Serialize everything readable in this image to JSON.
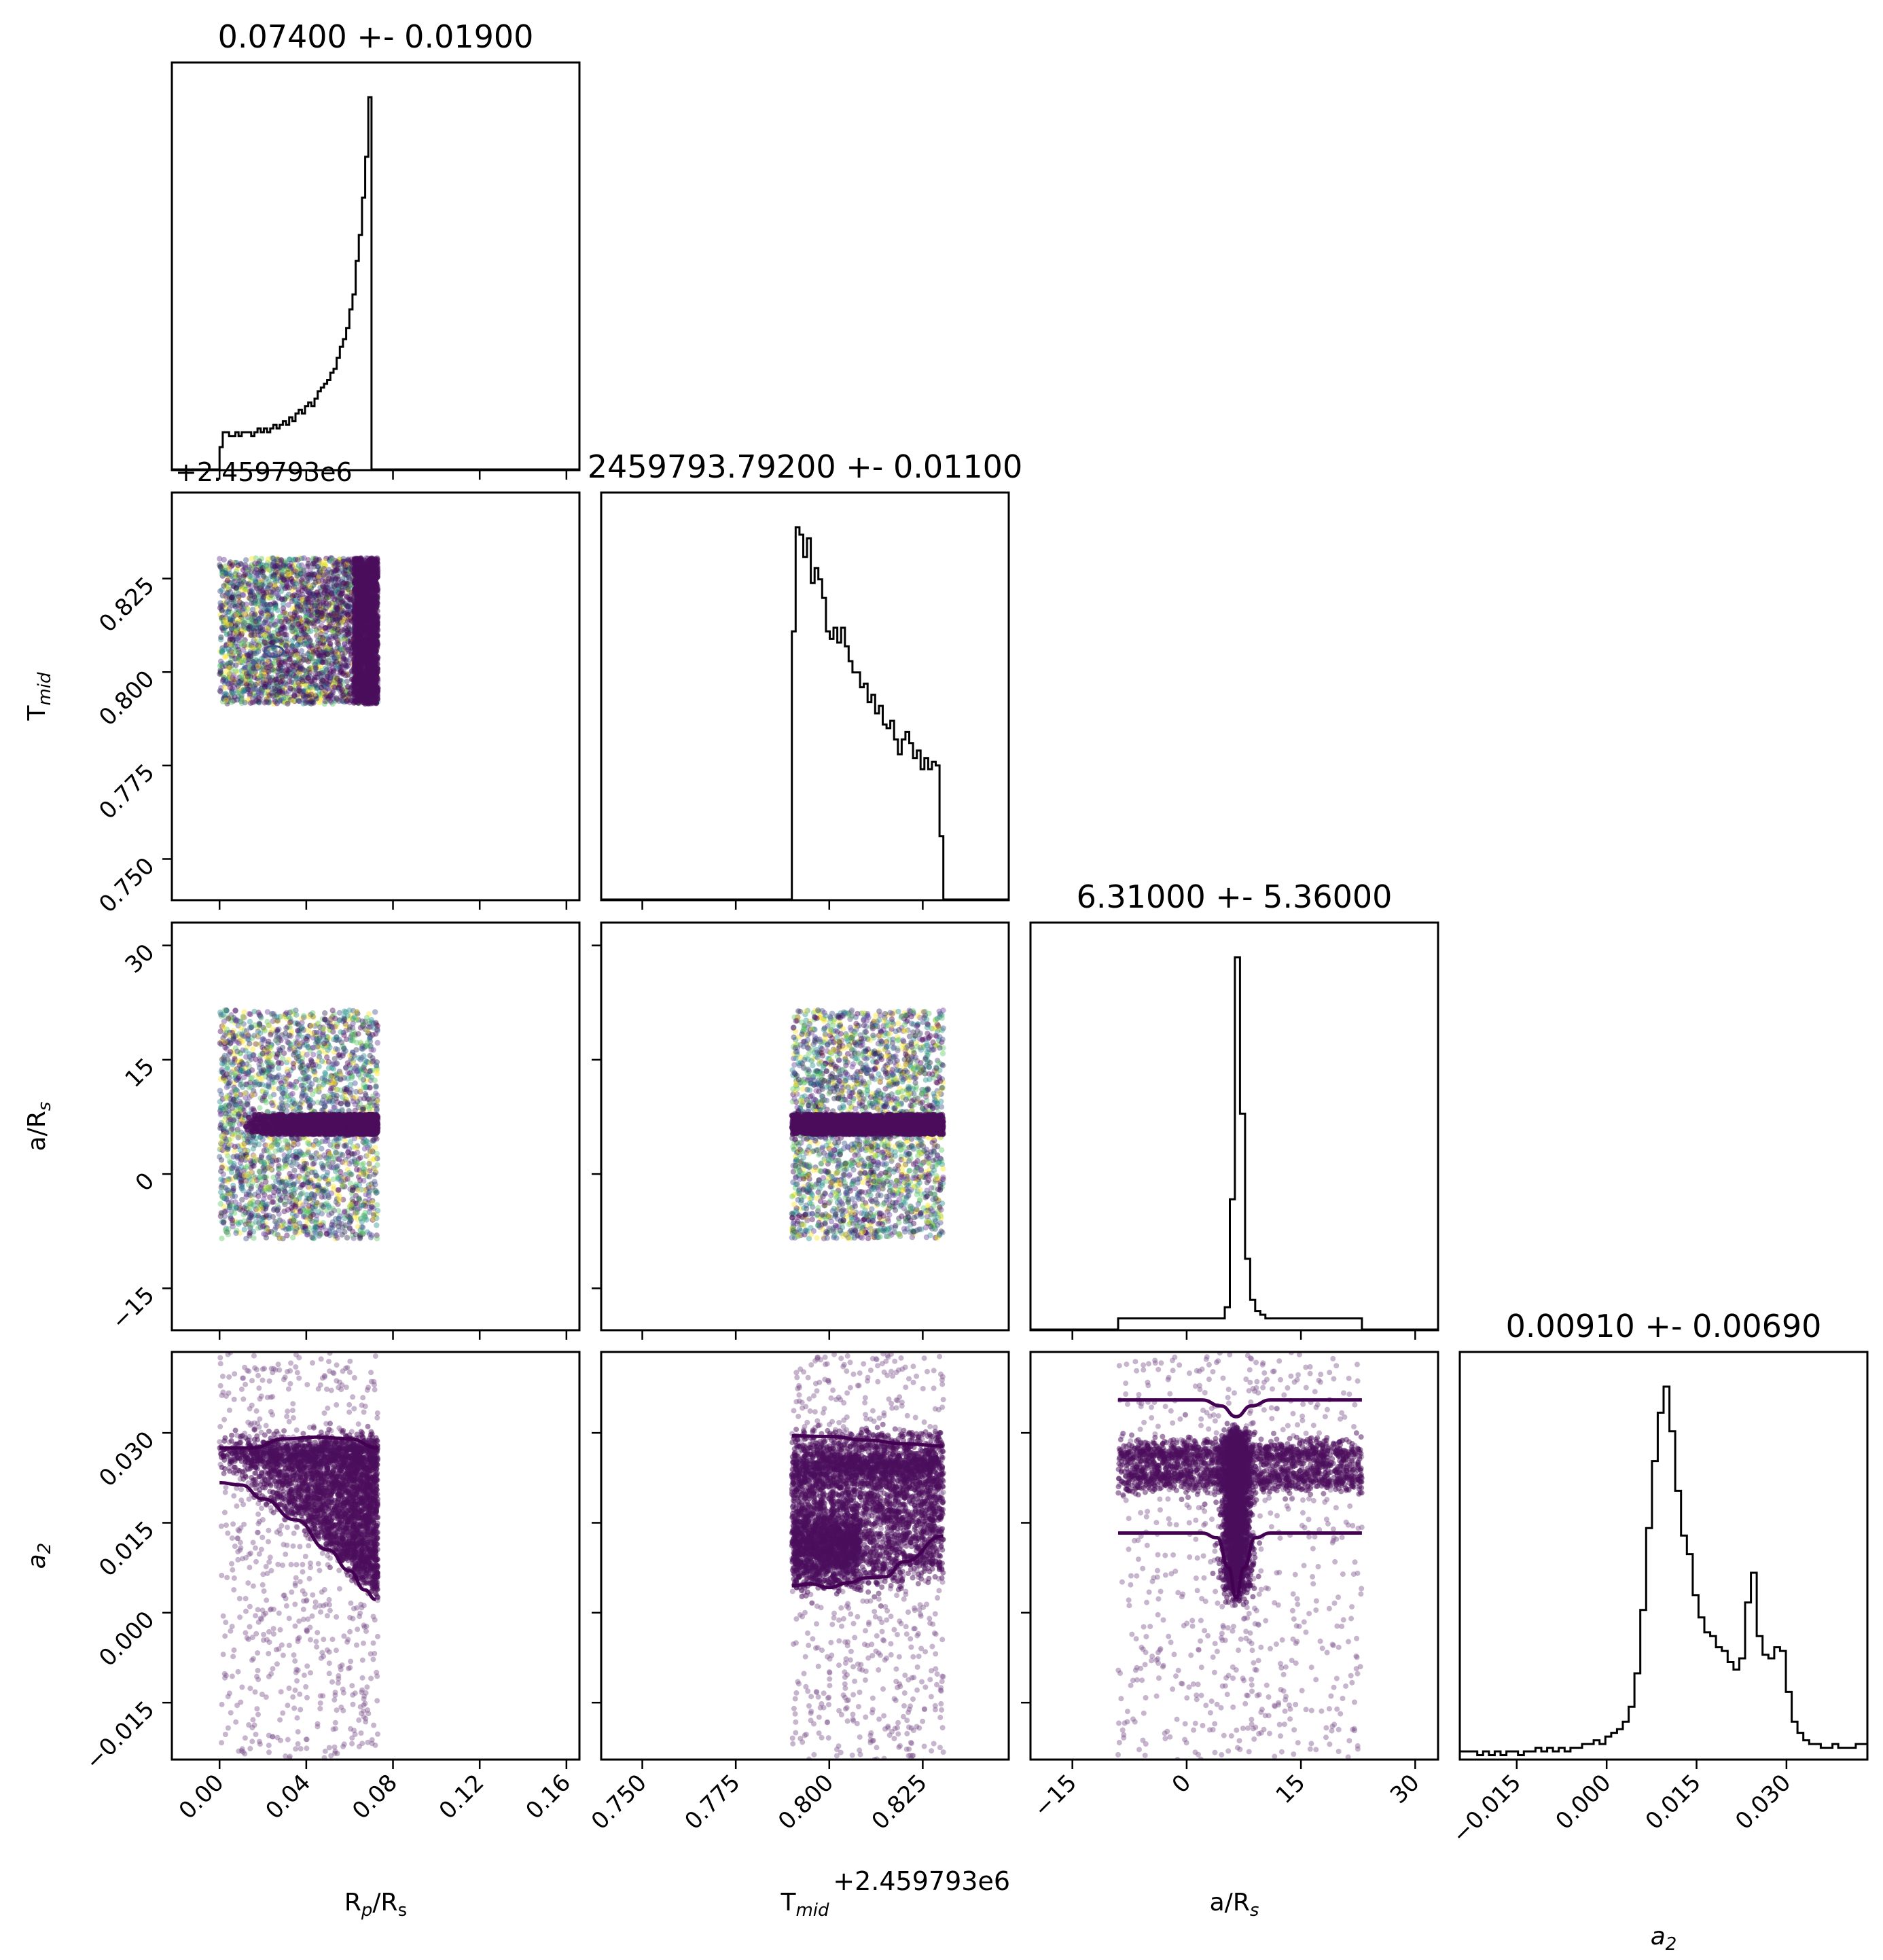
{
  "colors": {
    "frame": "#000000",
    "points": "#4b0e5c",
    "contour": "#440154",
    "hist": "#000000"
  },
  "chart_data": {
    "type": "corner",
    "params": [
      {
        "key": "rp",
        "label": "R",
        "label_sub": "p",
        "label_rest": "/R",
        "label_rest_sub": "s",
        "title": "0.07400 +- 0.01900",
        "range": [
          -0.022,
          0.166
        ],
        "ticks": [
          "0.00",
          "0.04",
          "0.08",
          "0.12",
          "0.16"
        ],
        "tick_values": [
          0.0,
          0.04,
          0.08,
          0.12,
          0.16
        ]
      },
      {
        "key": "tmid",
        "label": "T",
        "label_sub": "mid",
        "label_rest": "",
        "label_rest_sub": "",
        "title": "2459793.79200 +- 0.01100",
        "offset_text_x": "+2.459793e6",
        "offset_text_y": "+2.459793e6",
        "range": [
          0.739,
          0.848
        ],
        "ticks": [
          "0.750",
          "0.775",
          "0.800",
          "0.825"
        ],
        "tick_values": [
          0.75,
          0.775,
          0.8,
          0.825
        ]
      },
      {
        "key": "ars",
        "label": "a/R",
        "label_sub": "s",
        "label_rest": "",
        "label_rest_sub": "",
        "title": "6.31000 +- 5.36000",
        "range": [
          -20.5,
          33.0
        ],
        "ticks": [
          "−15",
          "0",
          "15",
          "30"
        ],
        "tick_values": [
          -15,
          0,
          15,
          30
        ]
      },
      {
        "key": "a2",
        "label": "a",
        "label_sub": "2",
        "label_rest": "",
        "label_rest_sub": "",
        "label_italic": true,
        "title": "0.00910 +- 0.00690",
        "range": [
          -0.0245,
          0.0435
        ],
        "ticks": [
          "−0.015",
          "0.000",
          "0.015",
          "0.030"
        ],
        "tick_values": [
          -0.015,
          0.0,
          0.015,
          0.03
        ]
      }
    ],
    "histograms": [
      {
        "param": "rp",
        "edges_from": 0.0,
        "edges_to": 0.073,
        "bins": 50,
        "counts": [
          0.06,
          0.1,
          0.1,
          0.09,
          0.09,
          0.1,
          0.09,
          0.1,
          0.1,
          0.1,
          0.09,
          0.1,
          0.11,
          0.1,
          0.11,
          0.1,
          0.11,
          0.12,
          0.11,
          0.12,
          0.13,
          0.12,
          0.14,
          0.13,
          0.15,
          0.16,
          0.15,
          0.17,
          0.18,
          0.17,
          0.19,
          0.21,
          0.22,
          0.23,
          0.24,
          0.26,
          0.27,
          0.3,
          0.33,
          0.35,
          0.38,
          0.43,
          0.47,
          0.56,
          0.63,
          0.73,
          0.84,
          1.0,
          0.0,
          0.0
        ]
      },
      {
        "param": "tmid",
        "edges_from": 0.79,
        "edges_to": 0.8305,
        "bins": 40,
        "counts": [
          0.72,
          1.0,
          0.98,
          0.92,
          0.97,
          0.85,
          0.89,
          0.86,
          0.81,
          0.72,
          0.7,
          0.73,
          0.69,
          0.73,
          0.68,
          0.64,
          0.61,
          0.61,
          0.57,
          0.58,
          0.53,
          0.55,
          0.5,
          0.52,
          0.47,
          0.46,
          0.48,
          0.43,
          0.39,
          0.43,
          0.45,
          0.42,
          0.38,
          0.4,
          0.35,
          0.38,
          0.35,
          0.37,
          0.36,
          0.17
        ]
      },
      {
        "param": "ars",
        "edges_from": -9.0,
        "edges_to": 23.0,
        "bins": 48,
        "counts": [
          0.03,
          0.03,
          0.03,
          0.03,
          0.03,
          0.03,
          0.03,
          0.03,
          0.03,
          0.03,
          0.03,
          0.03,
          0.03,
          0.03,
          0.03,
          0.03,
          0.03,
          0.03,
          0.03,
          0.03,
          0.03,
          0.06,
          0.35,
          1.0,
          0.58,
          0.19,
          0.08,
          0.05,
          0.04,
          0.03,
          0.03,
          0.03,
          0.03,
          0.03,
          0.03,
          0.03,
          0.03,
          0.03,
          0.03,
          0.03,
          0.03,
          0.03,
          0.03,
          0.03,
          0.03,
          0.03,
          0.03,
          0.03
        ]
      },
      {
        "param": "a2",
        "edges_from": -0.0245,
        "edges_to": 0.0435,
        "bins": 70,
        "counts": [
          0.02,
          0.02,
          0.02,
          0.01,
          0.02,
          0.01,
          0.02,
          0.01,
          0.02,
          0.02,
          0.01,
          0.02,
          0.02,
          0.03,
          0.02,
          0.03,
          0.02,
          0.03,
          0.02,
          0.03,
          0.03,
          0.04,
          0.04,
          0.05,
          0.04,
          0.06,
          0.07,
          0.08,
          0.1,
          0.14,
          0.23,
          0.4,
          0.62,
          0.8,
          0.93,
          1.0,
          0.88,
          0.72,
          0.6,
          0.55,
          0.44,
          0.38,
          0.34,
          0.33,
          0.3,
          0.29,
          0.26,
          0.24,
          0.27,
          0.42,
          0.5,
          0.33,
          0.28,
          0.27,
          0.3,
          0.29,
          0.18,
          0.1,
          0.07,
          0.05,
          0.04,
          0.04,
          0.03,
          0.03,
          0.04,
          0.03,
          0.03,
          0.03,
          0.04,
          0.04
        ]
      }
    ],
    "scatter_regions": [
      {
        "x": "rp",
        "y": "tmid",
        "x_range": [
          0.0,
          0.073
        ],
        "y_range": [
          0.7915,
          0.8305
        ],
        "dense_band_x": [
          0.062,
          0.073
        ]
      },
      {
        "x": "rp",
        "y": "ars",
        "x_range": [
          0.0,
          0.073
        ],
        "y_range": [
          -8.5,
          21.5
        ],
        "dense_band_y": [
          5.2,
          7.8
        ]
      },
      {
        "x": "tmid",
        "y": "ars",
        "x_range": [
          0.79,
          0.8305
        ],
        "y_range": [
          -8.5,
          21.5
        ],
        "dense_band_y": [
          5.2,
          7.8
        ]
      },
      {
        "x": "rp",
        "y": "a2",
        "x_range": [
          0.0,
          0.073
        ],
        "y_range": [
          -0.0245,
          0.0435
        ]
      },
      {
        "x": "tmid",
        "y": "a2",
        "x_range": [
          0.79,
          0.8305
        ],
        "y_range": [
          -0.0245,
          0.0435
        ]
      },
      {
        "x": "ars",
        "y": "a2",
        "x_range": [
          -9.0,
          23.0
        ],
        "y_range": [
          -0.0245,
          0.0435
        ]
      }
    ],
    "contours": [
      {
        "x": "rp",
        "y": "a2",
        "lines": [
          [
            [
              0.0,
              0.0275
            ],
            [
              0.015,
              0.0275
            ],
            [
              0.03,
              0.029
            ],
            [
              0.045,
              0.0293
            ],
            [
              0.06,
              0.029
            ],
            [
              0.073,
              0.0275
            ]
          ],
          [
            [
              0.0,
              0.0217
            ],
            [
              0.01,
              0.0213
            ],
            [
              0.02,
              0.019
            ],
            [
              0.035,
              0.0155
            ],
            [
              0.05,
              0.0105
            ],
            [
              0.06,
              0.007
            ],
            [
              0.067,
              0.0038
            ],
            [
              0.072,
              0.0022
            ]
          ]
        ]
      },
      {
        "x": "tmid",
        "y": "a2",
        "lines": [
          [
            [
              0.79,
              0.0295
            ],
            [
              0.8,
              0.0294
            ],
            [
              0.81,
              0.0288
            ],
            [
              0.82,
              0.0282
            ],
            [
              0.8305,
              0.0278
            ]
          ],
          [
            [
              0.79,
              0.0045
            ],
            [
              0.795,
              0.0048
            ],
            [
              0.8,
              0.0042
            ],
            [
              0.805,
              0.005
            ],
            [
              0.81,
              0.0058
            ],
            [
              0.815,
              0.006
            ],
            [
              0.82,
              0.0085
            ],
            [
              0.8305,
              0.0128
            ]
          ]
        ]
      },
      {
        "x": "ars",
        "y": "a2",
        "lines": [
          [
            [
              -9.0,
              0.0355
            ],
            [
              2.0,
              0.0355
            ],
            [
              4.5,
              0.0345
            ],
            [
              6.5,
              0.0327
            ],
            [
              8.5,
              0.0345
            ],
            [
              11.0,
              0.0355
            ],
            [
              23.0,
              0.0355
            ]
          ],
          [
            [
              -9.0,
              0.0133
            ],
            [
              2.0,
              0.0133
            ],
            [
              4.0,
              0.0125
            ],
            [
              5.5,
              0.0075
            ],
            [
              6.5,
              0.0025
            ],
            [
              7.5,
              0.0075
            ],
            [
              9.0,
              0.0125
            ],
            [
              11.0,
              0.0133
            ],
            [
              23.0,
              0.0133
            ]
          ]
        ]
      }
    ],
    "xlabel_rp": "R_p/R_s",
    "xlabel_tmid": "T_mid",
    "xlabel_ars": "a/R_s",
    "xlabel_a2": "a_2"
  }
}
